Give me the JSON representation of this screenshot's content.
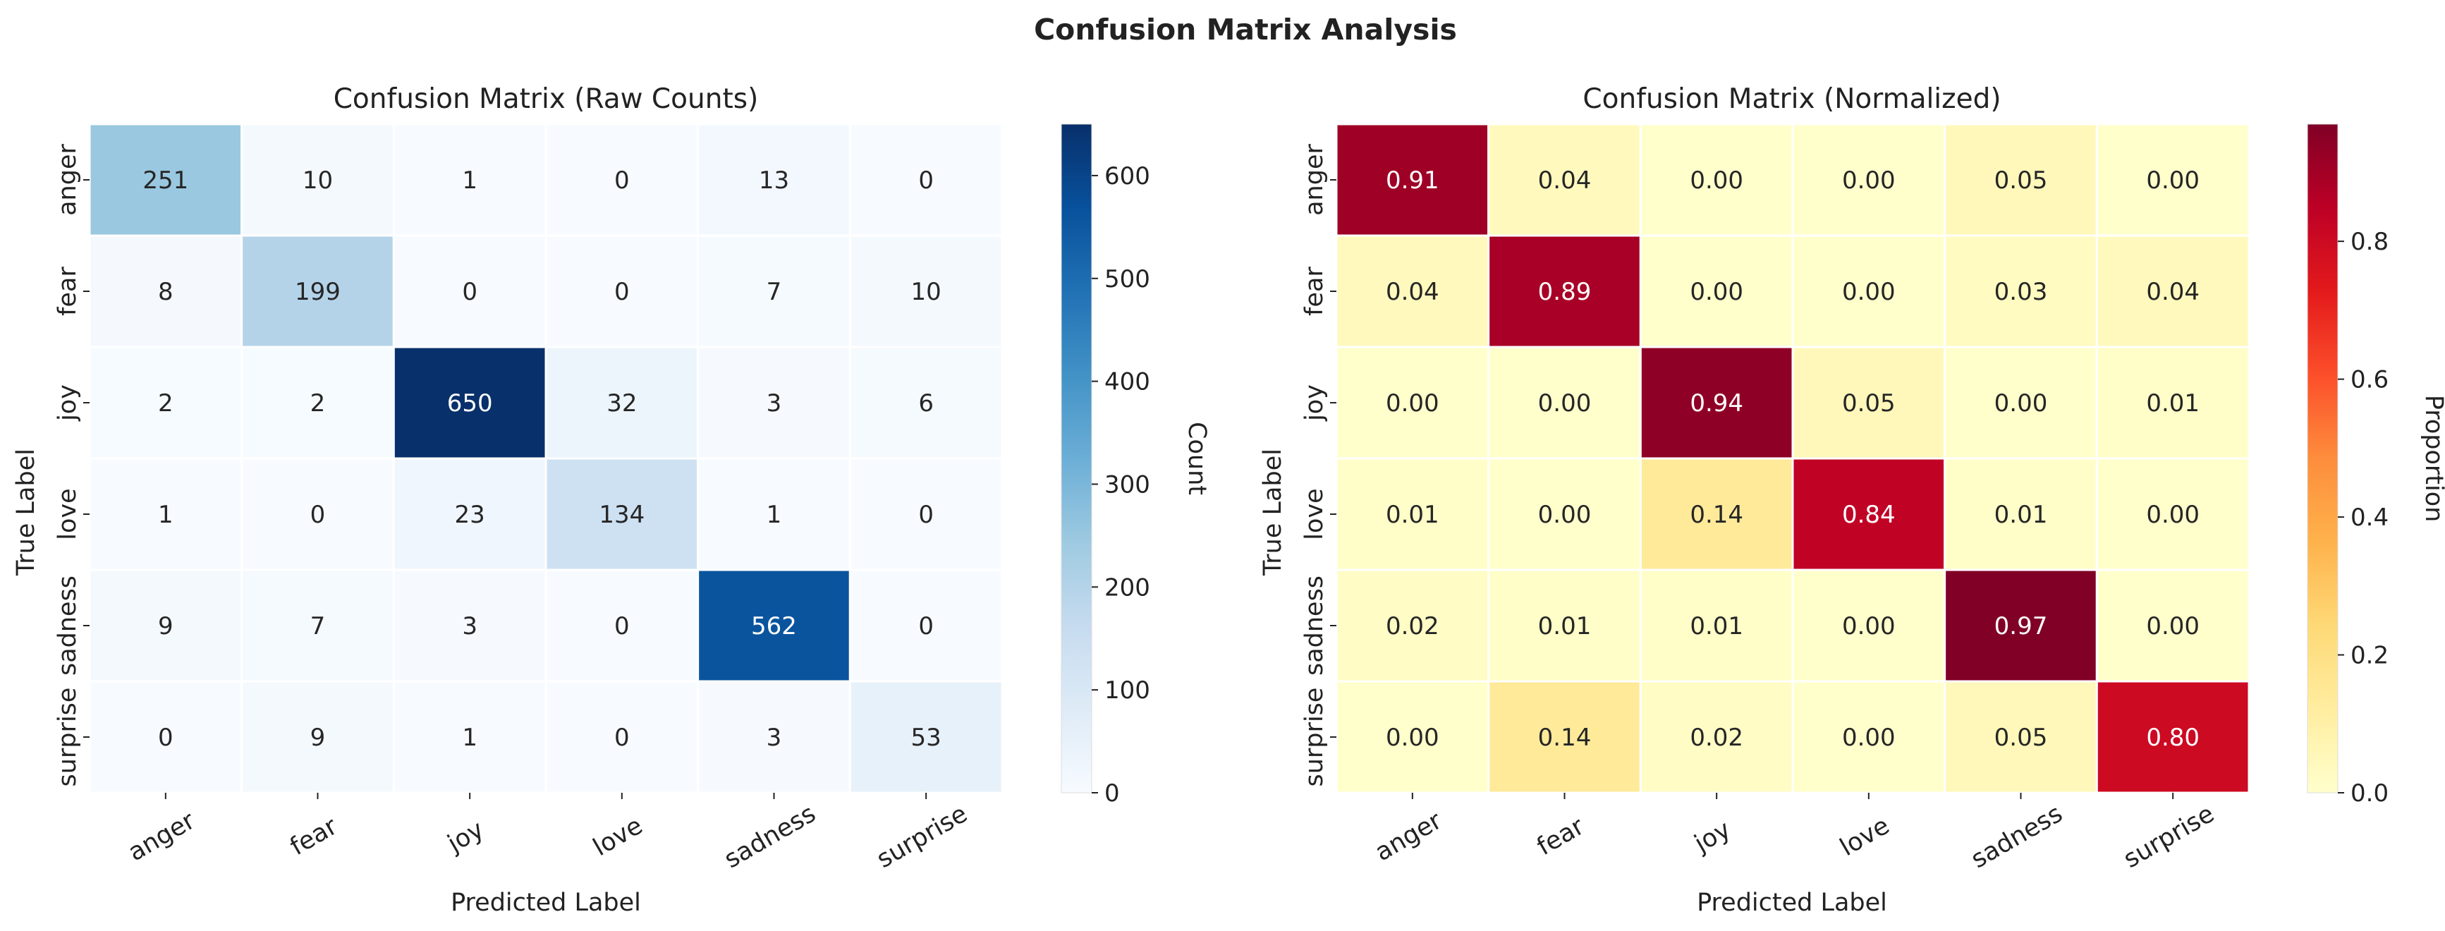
{
  "figure_title": "Confusion Matrix Analysis",
  "chart_data": [
    {
      "type": "heatmap",
      "title": "Confusion Matrix (Raw Counts)",
      "xlabel": "Predicted Label",
      "ylabel": "True Label",
      "x_categories": [
        "anger",
        "fear",
        "joy",
        "love",
        "sadness",
        "surprise"
      ],
      "y_categories": [
        "anger",
        "fear",
        "joy",
        "love",
        "sadness",
        "surprise"
      ],
      "values": [
        [
          251,
          10,
          1,
          0,
          13,
          0
        ],
        [
          8,
          199,
          0,
          0,
          7,
          10
        ],
        [
          2,
          2,
          650,
          32,
          3,
          6
        ],
        [
          1,
          0,
          23,
          134,
          1,
          0
        ],
        [
          9,
          7,
          3,
          0,
          562,
          0
        ],
        [
          0,
          9,
          1,
          0,
          3,
          53
        ]
      ],
      "value_format": "int",
      "colormap": "Blues",
      "colors": [
        "#f7fbff",
        "#deebf7",
        "#c6dbef",
        "#9ecae1",
        "#6baed6",
        "#4292c6",
        "#2171b5",
        "#08519c",
        "#08306b"
      ],
      "vmin": 0,
      "vmax": 650,
      "colorbar_label": "Count",
      "colorbar_ticks": [
        0,
        100,
        200,
        300,
        400,
        500,
        600
      ],
      "colorbar_tick_labels": [
        "0",
        "100",
        "200",
        "300",
        "400",
        "500",
        "600"
      ]
    },
    {
      "type": "heatmap",
      "title": "Confusion Matrix (Normalized)",
      "xlabel": "Predicted Label",
      "ylabel": "True Label",
      "x_categories": [
        "anger",
        "fear",
        "joy",
        "love",
        "sadness",
        "surprise"
      ],
      "y_categories": [
        "anger",
        "fear",
        "joy",
        "love",
        "sadness",
        "surprise"
      ],
      "values": [
        [
          0.91,
          0.04,
          0.0,
          0.0,
          0.05,
          0.0
        ],
        [
          0.04,
          0.89,
          0.0,
          0.0,
          0.03,
          0.04
        ],
        [
          0.0,
          0.0,
          0.94,
          0.05,
          0.0,
          0.01
        ],
        [
          0.01,
          0.0,
          0.14,
          0.84,
          0.01,
          0.0
        ],
        [
          0.02,
          0.01,
          0.01,
          0.0,
          0.97,
          0.0
        ],
        [
          0.0,
          0.14,
          0.02,
          0.0,
          0.05,
          0.8
        ]
      ],
      "value_format": "2f",
      "colormap": "YlOrRd",
      "colors": [
        "#ffffcc",
        "#ffeda0",
        "#fed976",
        "#feb24c",
        "#fd8d3c",
        "#fc4e2a",
        "#e31a1c",
        "#bd0026",
        "#800026"
      ],
      "vmin": 0,
      "vmax": 0.97,
      "colorbar_label": "Proportion",
      "colorbar_ticks": [
        0.0,
        0.2,
        0.4,
        0.6,
        0.8
      ],
      "colorbar_tick_labels": [
        "0.0",
        "0.2",
        "0.4",
        "0.6",
        "0.8"
      ]
    }
  ]
}
